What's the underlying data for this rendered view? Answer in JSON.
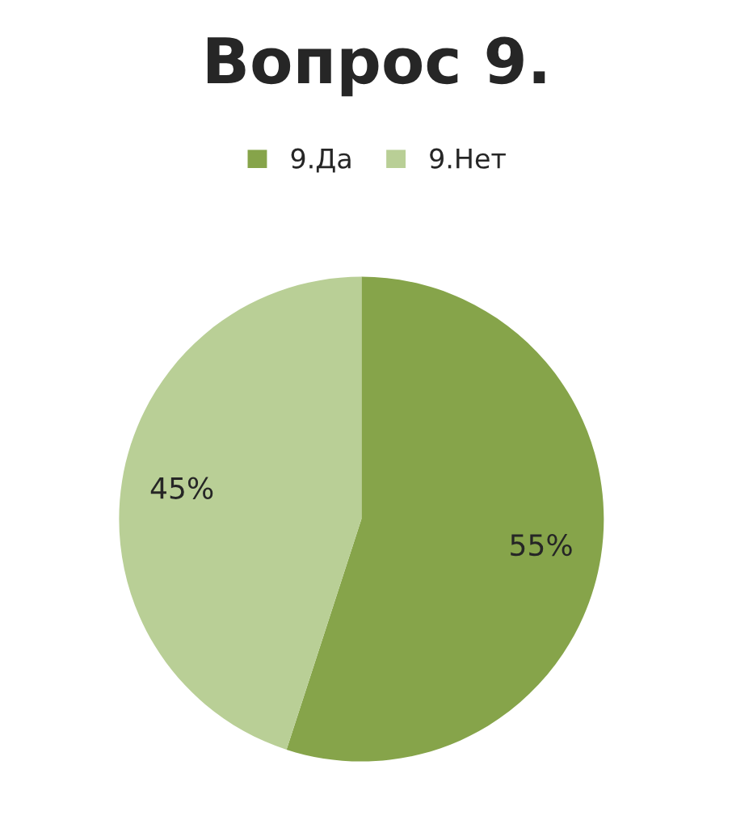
{
  "chart_data": {
    "type": "pie",
    "title": "Вопрос 9.",
    "categories": [
      "9.Да",
      "9.Нет"
    ],
    "values": [
      55,
      45
    ],
    "colors": [
      "#86a44a",
      "#b9cf96"
    ],
    "value_labels": [
      "55%",
      "45%"
    ],
    "legend": "top"
  }
}
